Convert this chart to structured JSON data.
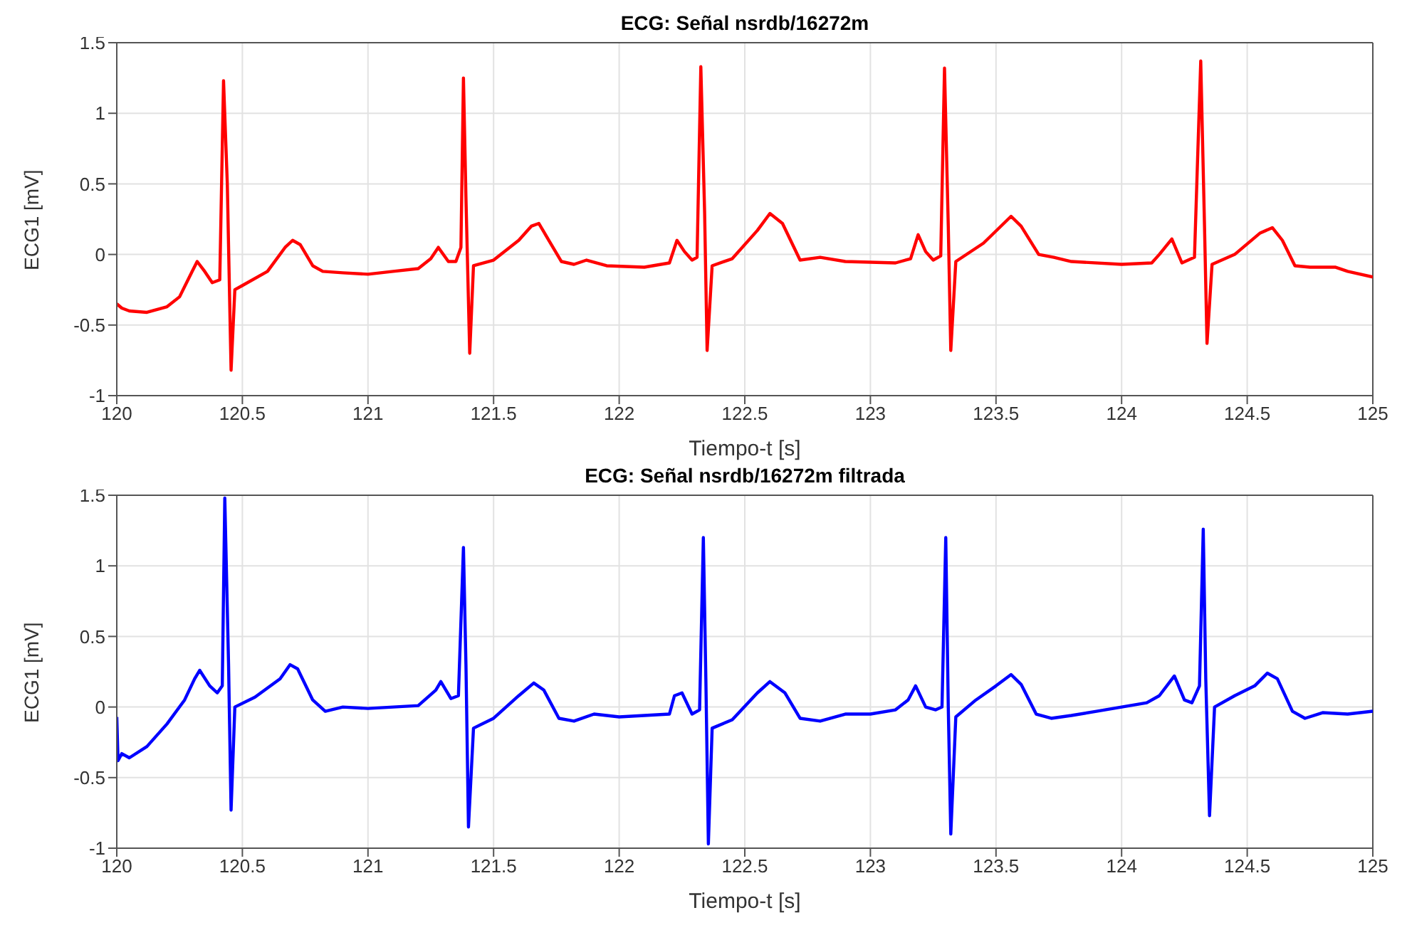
{
  "chart_data": [
    {
      "type": "line",
      "title": "ECG: Señal nsrdb/16272m",
      "xlabel": "Tiempo-t [s]",
      "ylabel": "ECG1 [mV]",
      "xlim": [
        120,
        125
      ],
      "xticks": [
        120,
        120.5,
        121,
        121.5,
        122,
        122.5,
        123,
        123.5,
        124,
        124.5,
        125
      ],
      "ylim": [
        -1,
        1.5
      ],
      "yticks": [
        -1,
        -0.5,
        0,
        0.5,
        1,
        1.5
      ],
      "grid": true,
      "line_style": "solid",
      "marker": "none",
      "x": [
        120.0,
        120.02,
        120.05,
        120.12,
        120.2,
        120.25,
        120.3,
        120.32,
        120.35,
        120.38,
        120.41,
        120.425,
        120.44,
        120.455,
        120.47,
        120.5,
        120.6,
        120.67,
        120.7,
        120.73,
        120.78,
        120.82,
        120.9,
        121.0,
        121.1,
        121.2,
        121.25,
        121.28,
        121.32,
        121.35,
        121.37,
        121.38,
        121.39,
        121.405,
        121.42,
        121.5,
        121.6,
        121.65,
        121.68,
        121.72,
        121.77,
        121.82,
        121.87,
        121.95,
        122.1,
        122.2,
        122.23,
        122.26,
        122.29,
        122.31,
        122.325,
        122.34,
        122.35,
        122.37,
        122.45,
        122.55,
        122.6,
        122.65,
        122.72,
        122.8,
        122.9,
        123.1,
        123.16,
        123.19,
        123.22,
        123.25,
        123.28,
        123.295,
        123.31,
        123.32,
        123.34,
        123.45,
        123.56,
        123.6,
        123.67,
        123.73,
        123.8,
        124.0,
        124.12,
        124.15,
        124.2,
        124.24,
        124.29,
        124.315,
        124.33,
        124.34,
        124.36,
        124.45,
        124.55,
        124.6,
        124.64,
        124.69,
        124.75,
        124.85,
        124.9,
        125.0
      ],
      "series": [
        {
          "color": "#ff0000",
          "values": [
            -0.35,
            -0.38,
            -0.4,
            -0.41,
            -0.37,
            -0.3,
            -0.12,
            -0.05,
            -0.12,
            -0.2,
            -0.18,
            1.23,
            0.5,
            -0.82,
            -0.25,
            -0.22,
            -0.12,
            0.05,
            0.1,
            0.07,
            -0.08,
            -0.12,
            -0.13,
            -0.14,
            -0.12,
            -0.1,
            -0.03,
            0.05,
            -0.05,
            -0.05,
            0.05,
            1.25,
            0.4,
            -0.7,
            -0.08,
            -0.04,
            0.1,
            0.2,
            0.22,
            0.1,
            -0.05,
            -0.07,
            -0.04,
            -0.08,
            -0.09,
            -0.06,
            0.1,
            0.02,
            -0.04,
            -0.02,
            1.33,
            0.3,
            -0.68,
            -0.08,
            -0.03,
            0.17,
            0.29,
            0.22,
            -0.04,
            -0.02,
            -0.05,
            -0.06,
            -0.03,
            0.14,
            0.02,
            -0.04,
            -0.01,
            1.32,
            0.2,
            -0.68,
            -0.05,
            0.08,
            0.27,
            0.2,
            0.0,
            -0.02,
            -0.05,
            -0.07,
            -0.06,
            0.0,
            0.11,
            -0.06,
            -0.02,
            1.37,
            0.2,
            -0.63,
            -0.07,
            0.0,
            0.15,
            0.19,
            0.1,
            -0.08,
            -0.09,
            -0.09,
            -0.12,
            -0.16
          ]
        }
      ]
    },
    {
      "type": "line",
      "title": "ECG: Señal nsrdb/16272m filtrada",
      "xlabel": "Tiempo-t [s]",
      "ylabel": "ECG1 [mV]",
      "xlim": [
        120,
        125
      ],
      "xticks": [
        120,
        120.5,
        121,
        121.5,
        122,
        122.5,
        123,
        123.5,
        124,
        124.5,
        125
      ],
      "ylim": [
        -1,
        1.5
      ],
      "yticks": [
        -1,
        -0.5,
        0,
        0.5,
        1,
        1.5
      ],
      "grid": true,
      "line_style": "solid",
      "marker": "none",
      "x": [
        120.0,
        120.005,
        120.02,
        120.05,
        120.12,
        120.2,
        120.27,
        120.31,
        120.33,
        120.37,
        120.4,
        120.42,
        120.43,
        120.445,
        120.455,
        120.47,
        120.55,
        120.65,
        120.69,
        120.72,
        120.78,
        120.83,
        120.9,
        121.0,
        121.2,
        121.27,
        121.29,
        121.33,
        121.36,
        121.38,
        121.39,
        121.4,
        121.42,
        121.5,
        121.6,
        121.66,
        121.7,
        121.76,
        121.82,
        121.9,
        122.0,
        122.2,
        122.22,
        122.25,
        122.29,
        122.32,
        122.335,
        122.345,
        122.355,
        122.37,
        122.45,
        122.55,
        122.6,
        122.66,
        122.72,
        122.8,
        122.9,
        123.0,
        123.1,
        123.15,
        123.18,
        123.22,
        123.26,
        123.285,
        123.3,
        123.31,
        123.32,
        123.34,
        123.42,
        123.5,
        123.56,
        123.6,
        123.66,
        123.72,
        123.8,
        123.9,
        124.0,
        124.1,
        124.15,
        124.21,
        124.25,
        124.28,
        124.31,
        124.325,
        124.335,
        124.35,
        124.37,
        124.45,
        124.53,
        124.58,
        124.62,
        124.68,
        124.73,
        124.8,
        124.9,
        125.0
      ],
      "series": [
        {
          "color": "#0000ff",
          "values": [
            -0.07,
            -0.38,
            -0.33,
            -0.36,
            -0.28,
            -0.12,
            0.05,
            0.2,
            0.26,
            0.15,
            0.1,
            0.15,
            1.48,
            0.3,
            -0.73,
            0.0,
            0.07,
            0.2,
            0.3,
            0.27,
            0.05,
            -0.03,
            0.0,
            -0.01,
            0.01,
            0.12,
            0.18,
            0.06,
            0.08,
            1.13,
            0.3,
            -0.85,
            -0.15,
            -0.08,
            0.08,
            0.17,
            0.12,
            -0.08,
            -0.1,
            -0.05,
            -0.07,
            -0.05,
            0.08,
            0.1,
            -0.05,
            -0.02,
            1.2,
            0.2,
            -0.97,
            -0.15,
            -0.09,
            0.1,
            0.18,
            0.1,
            -0.08,
            -0.1,
            -0.05,
            -0.05,
            -0.02,
            0.05,
            0.15,
            0.0,
            -0.02,
            0.0,
            1.2,
            0.0,
            -0.9,
            -0.07,
            0.05,
            0.15,
            0.23,
            0.16,
            -0.05,
            -0.08,
            -0.06,
            -0.03,
            0.0,
            0.03,
            0.08,
            0.22,
            0.05,
            0.03,
            0.15,
            1.26,
            0.2,
            -0.77,
            0.0,
            0.08,
            0.15,
            0.24,
            0.2,
            -0.03,
            -0.08,
            -0.04,
            -0.05,
            -0.03
          ]
        }
      ]
    }
  ]
}
